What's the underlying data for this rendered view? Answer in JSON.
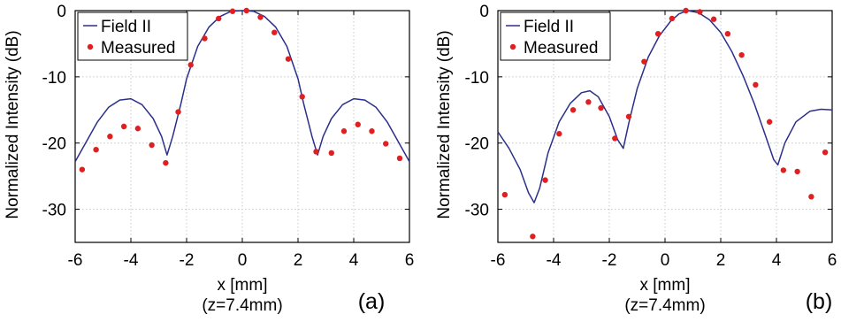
{
  "chart_data": [
    {
      "type": "line",
      "panel_label": "(a)",
      "xlabel": "x [mm]",
      "xlabel_sub": "(z=7.4mm)",
      "ylabel": "Normalized Intensity (dB)",
      "xlim": [
        -6,
        6
      ],
      "ylim": [
        -35,
        0
      ],
      "xticks": [
        -6,
        -4,
        -2,
        0,
        2,
        4,
        6
      ],
      "yticks": [
        0,
        -10,
        -20,
        -30
      ],
      "grid": true,
      "legend_position": "top-left",
      "series": [
        {
          "name": "Field II",
          "kind": "line",
          "color": "#2b2f8c",
          "x": [
            -6,
            -5.6,
            -5.2,
            -4.8,
            -4.4,
            -4.0,
            -3.6,
            -3.2,
            -2.9,
            -2.7,
            -2.5,
            -2.2,
            -2.0,
            -1.6,
            -1.2,
            -0.8,
            -0.4,
            0,
            0.4,
            0.8,
            1.2,
            1.6,
            2.0,
            2.2,
            2.5,
            2.7,
            2.9,
            3.2,
            3.6,
            4.0,
            4.4,
            4.8,
            5.2,
            5.6,
            6.0
          ],
          "y": [
            -22.8,
            -19.8,
            -16.8,
            -14.6,
            -13.5,
            -13.3,
            -14.2,
            -16.3,
            -19.0,
            -21.8,
            -19.0,
            -14.0,
            -10.3,
            -5.4,
            -2.5,
            -0.9,
            -0.1,
            0,
            -0.1,
            -0.9,
            -2.5,
            -5.4,
            -10.3,
            -14.0,
            -19.0,
            -21.8,
            -19.0,
            -16.3,
            -14.2,
            -13.3,
            -13.5,
            -14.6,
            -16.8,
            -19.8,
            -22.8
          ]
        },
        {
          "name": "Measured",
          "kind": "scatter",
          "color": "#e02020",
          "x": [
            -5.75,
            -5.25,
            -4.75,
            -4.25,
            -3.75,
            -3.25,
            -2.75,
            -2.3,
            -1.85,
            -1.35,
            -0.85,
            -0.35,
            0.15,
            0.65,
            1.15,
            1.65,
            2.15,
            2.65,
            3.2,
            3.65,
            4.15,
            4.65,
            5.15,
            5.65
          ],
          "y": [
            -24.0,
            -21.0,
            -19.0,
            -17.5,
            -17.8,
            -20.3,
            -23.0,
            -15.3,
            -8.2,
            -4.2,
            -1.2,
            -0.1,
            0,
            -1.0,
            -3.3,
            -7.3,
            -13.0,
            -21.3,
            -21.5,
            -18.2,
            -17.2,
            -18.2,
            -20.1,
            -22.3
          ]
        }
      ]
    },
    {
      "type": "line",
      "panel_label": "(b)",
      "xlabel": "x [mm]",
      "xlabel_sub": "(z=7.4mm)",
      "ylabel": "Normalized Intensity (dB)",
      "xlim": [
        -6,
        6
      ],
      "ylim": [
        -35,
        0
      ],
      "xticks": [
        -6,
        -4,
        -2,
        0,
        2,
        4,
        6
      ],
      "yticks": [
        0,
        -10,
        -20,
        -30
      ],
      "grid": true,
      "legend_position": "top-left",
      "series": [
        {
          "name": "Field II",
          "kind": "line",
          "color": "#2b2f8c",
          "x": [
            -6,
            -5.6,
            -5.2,
            -4.9,
            -4.7,
            -4.5,
            -4.2,
            -3.8,
            -3.4,
            -3.0,
            -2.7,
            -2.4,
            -2.0,
            -1.7,
            -1.5,
            -1.3,
            -1.0,
            -0.6,
            -0.2,
            0.2,
            0.5,
            0.8,
            1.2,
            1.6,
            2.0,
            2.4,
            2.8,
            3.2,
            3.6,
            3.9,
            4.05,
            4.3,
            4.7,
            5.2,
            5.6,
            6.0
          ],
          "y": [
            -18.3,
            -20.8,
            -24.0,
            -27.5,
            -29.0,
            -26.8,
            -21.5,
            -16.8,
            -14.0,
            -12.4,
            -12.1,
            -13.0,
            -16.0,
            -19.5,
            -20.8,
            -17.0,
            -11.8,
            -7.0,
            -3.8,
            -1.6,
            -0.5,
            0,
            -0.3,
            -1.4,
            -3.3,
            -6.2,
            -9.8,
            -14.0,
            -18.8,
            -22.5,
            -23.3,
            -20.0,
            -16.8,
            -15.2,
            -14.9,
            -15.0
          ]
        },
        {
          "name": "Measured",
          "kind": "scatter",
          "color": "#e02020",
          "x": [
            -5.75,
            -4.75,
            -4.3,
            -3.8,
            -3.3,
            -2.75,
            -2.3,
            -1.8,
            -1.3,
            -0.75,
            -0.25,
            0.25,
            0.75,
            1.25,
            1.75,
            2.25,
            2.75,
            3.25,
            3.75,
            4.25,
            4.75,
            5.25,
            5.75
          ],
          "y": [
            -27.8,
            -34.1,
            -25.6,
            -18.6,
            -15.0,
            -13.8,
            -14.7,
            -19.3,
            -16.0,
            -7.7,
            -3.5,
            -1.2,
            0,
            -0.2,
            -1.3,
            -3.5,
            -6.7,
            -11.2,
            -16.8,
            -24.1,
            -24.3,
            -28.1,
            -21.4
          ]
        }
      ]
    }
  ]
}
